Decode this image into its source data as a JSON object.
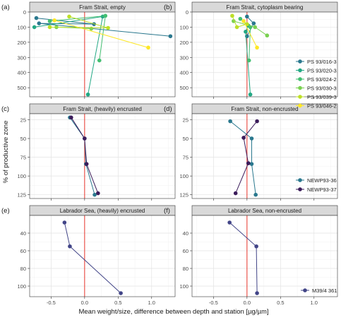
{
  "figure": {
    "x_axis_title": "Mean weight/size, difference between depth and station [µg/µm]",
    "y_axis_title": "% of productive zone",
    "x_ticks": [
      -0.5,
      0.0,
      0.5,
      1.0
    ],
    "x_tick_labels": [
      "-0.5",
      "0.0",
      "0.5",
      "1.0"
    ],
    "xlim": [
      -0.82,
      1.35
    ],
    "reference_line": {
      "x": 0,
      "color": "#e8342a"
    },
    "grid": true,
    "shared_x_axis": true
  },
  "legends": {
    "fram_stations": {
      "placement": "right of panel (b)",
      "entries": [
        {
          "name": "PS 93/016-3",
          "color": "#2a788e"
        },
        {
          "name": "PS 93/020-3",
          "color": "#22a884"
        },
        {
          "name": "PS 93/024-2",
          "color": "#43bf71"
        },
        {
          "name": "PS 93/030-3",
          "color": "#7ad151"
        },
        {
          "name": "PS 93/039-3",
          "color": "#bddf26"
        },
        {
          "name": "PS 93/046-2",
          "color": "#fde725"
        }
      ]
    },
    "newp": {
      "placement": "bottom-right of panel (d)",
      "entries": [
        {
          "name": "NEWP93-36",
          "color": "#2a788e"
        },
        {
          "name": "NEWP93-37",
          "color": "#3b1c5a"
        }
      ]
    },
    "m39": {
      "placement": "bottom-right of panel (f)",
      "entries": [
        {
          "name": "M39/4 361",
          "color": "#414487"
        }
      ]
    }
  },
  "chart_data": [
    {
      "type": "line",
      "panel": "(a)",
      "title": "Fram Strait, empty",
      "ylim": [
        560,
        0
      ],
      "y_ticks": [
        0,
        100,
        200,
        300,
        400,
        500
      ],
      "y_tick_labels": [
        "0",
        "100",
        "200",
        "300",
        "400",
        "500"
      ],
      "series": [
        {
          "name": "PS 93/016-3",
          "points": [
            [
              -0.72,
              40
            ],
            [
              0.14,
              80
            ],
            [
              -0.68,
              75
            ],
            [
              1.28,
              160
            ]
          ]
        },
        {
          "name": "PS 93/020-3",
          "points": [
            [
              -0.75,
              100
            ],
            [
              0.27,
              30
            ],
            [
              0.05,
              545
            ]
          ]
        },
        {
          "name": "PS 93/024-2",
          "points": [
            [
              -0.52,
              60
            ],
            [
              0.31,
              25
            ],
            [
              0.22,
              320
            ]
          ]
        },
        {
          "name": "PS 93/030-3",
          "points": [
            [
              -0.42,
              100
            ],
            [
              0.1,
              110
            ]
          ]
        },
        {
          "name": "PS 93/039-3",
          "points": [
            [
              -0.23,
              30
            ],
            [
              0.35,
              105
            ],
            [
              -0.52,
              100
            ]
          ]
        },
        {
          "name": "PS 93/046-2",
          "points": [
            [
              -0.45,
              55
            ],
            [
              0.95,
              235
            ]
          ]
        }
      ]
    },
    {
      "type": "line",
      "panel": "(b)",
      "title": "Fram Strait, cytoplasm bearing",
      "ylim": [
        560,
        0
      ],
      "y_ticks": [
        0,
        100,
        200,
        300,
        400,
        500
      ],
      "y_tick_labels": [
        "0",
        "100",
        "200",
        "300",
        "400",
        "500"
      ],
      "series": [
        {
          "name": "PS 93/016-3",
          "points": [
            [
              0.0,
              30
            ],
            [
              0.1,
              75
            ],
            [
              0.0,
              160
            ]
          ]
        },
        {
          "name": "PS 93/020-3",
          "points": [
            [
              0.02,
              90
            ],
            [
              -0.02,
              130
            ],
            [
              0.05,
              545
            ]
          ]
        },
        {
          "name": "PS 93/024-2",
          "points": [
            [
              -0.1,
              45
            ],
            [
              0.05,
              100
            ],
            [
              0.03,
              320
            ]
          ]
        },
        {
          "name": "PS 93/030-3",
          "points": [
            [
              -0.2,
              60
            ],
            [
              0.12,
              100
            ],
            [
              0.3,
              155
            ]
          ]
        },
        {
          "name": "PS 93/039-3",
          "points": [
            [
              -0.22,
              25
            ],
            [
              -0.15,
              100
            ],
            [
              0.0,
              80
            ]
          ]
        },
        {
          "name": "PS 93/046-2",
          "points": [
            [
              -0.05,
              60
            ],
            [
              0.15,
              235
            ]
          ]
        }
      ]
    },
    {
      "type": "line",
      "panel": "(c)",
      "title": "Fram Strait, (heavily) encrusted",
      "ylim": [
        130,
        17
      ],
      "y_ticks": [
        25,
        50,
        75,
        100,
        125
      ],
      "y_tick_labels": [
        "25",
        "50",
        "75",
        "100",
        "125"
      ],
      "series": [
        {
          "name": "NEWP93-36",
          "points": [
            [
              -0.22,
              22
            ],
            [
              0.0,
              50
            ],
            [
              0.02,
              84
            ],
            [
              0.15,
              125
            ]
          ]
        },
        {
          "name": "NEWP93-37",
          "points": [
            [
              -0.2,
              22
            ],
            [
              0.0,
              50
            ],
            [
              0.03,
              84
            ],
            [
              0.2,
              123
            ]
          ]
        }
      ]
    },
    {
      "type": "line",
      "panel": "(d)",
      "title": "Fram Strait, non-encrusted",
      "ylim": [
        130,
        17
      ],
      "y_ticks": [
        25,
        50,
        75,
        100,
        125
      ],
      "y_tick_labels": [
        "25",
        "50",
        "75",
        "100",
        "125"
      ],
      "series": [
        {
          "name": "NEWP93-36",
          "points": [
            [
              -0.25,
              27
            ],
            [
              0.07,
              50
            ],
            [
              0.07,
              84
            ],
            [
              0.13,
              125
            ]
          ]
        },
        {
          "name": "NEWP93-37",
          "points": [
            [
              0.15,
              27
            ],
            [
              -0.05,
              49
            ],
            [
              0.02,
              83
            ],
            [
              -0.17,
              123
            ]
          ]
        }
      ]
    },
    {
      "type": "line",
      "panel": "(e)",
      "title": "Labrador Sea, (heavily) encrusted",
      "ylim": [
        112,
        20
      ],
      "y_ticks": [
        40,
        60,
        80,
        100
      ],
      "y_tick_labels": [
        "40",
        "60",
        "80",
        "100"
      ],
      "series": [
        {
          "name": "M39/4 361",
          "points": [
            [
              -0.3,
              28
            ],
            [
              -0.22,
              55
            ],
            [
              0.54,
              108
            ]
          ]
        }
      ]
    },
    {
      "type": "line",
      "panel": "(f)",
      "title": "Labrador Sea, non-encrusted",
      "ylim": [
        112,
        20
      ],
      "y_ticks": [
        40,
        60,
        80,
        100
      ],
      "y_tick_labels": [
        "40",
        "60",
        "80",
        "100"
      ],
      "series": [
        {
          "name": "M39/4 361",
          "points": [
            [
              -0.26,
              28
            ],
            [
              0.14,
              55
            ],
            [
              0.15,
              108
            ]
          ]
        }
      ]
    }
  ]
}
